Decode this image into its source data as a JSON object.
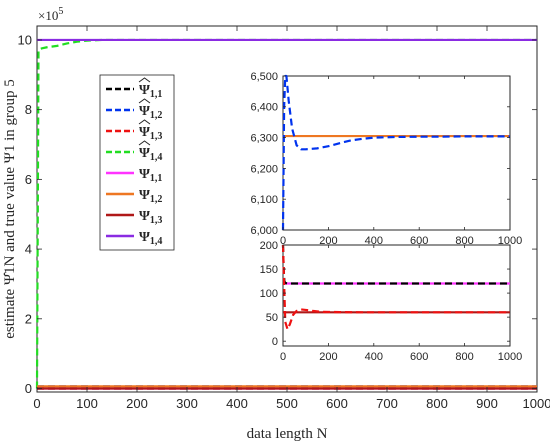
{
  "chart_data": [
    {
      "id": "main",
      "type": "line",
      "xlabel": "data length N",
      "ylabel": "estimate Ψ̂1N and true value Ψ1 in group 5",
      "exponent_label": "×10",
      "exponent_power": "5",
      "xlim": [
        0,
        1000
      ],
      "ylim": [
        -0.1,
        10.4
      ],
      "xticks": [
        0,
        100,
        200,
        300,
        400,
        500,
        600,
        700,
        800,
        900,
        1000
      ],
      "yticks": [
        0,
        2,
        4,
        6,
        8,
        10
      ],
      "tick_labels_x": [
        "0",
        "100",
        "200",
        "300",
        "400",
        "500",
        "600",
        "700",
        "800",
        "900",
        "1000"
      ],
      "tick_labels_y": [
        "0",
        "2",
        "4",
        "6",
        "8",
        "10"
      ],
      "grid": false,
      "legend_position": "top-left",
      "series": [
        {
          "name": "Ψ̂1,1",
          "sub": "1,1",
          "hat": true,
          "color": "#000000",
          "dashed": true,
          "x": [
            0,
            1000
          ],
          "y": [
            0.0012,
            0.0012
          ]
        },
        {
          "name": "Ψ̂1,2",
          "sub": "1,2",
          "hat": true,
          "color": "#0033ee",
          "dashed": true,
          "x": [
            0,
            1000
          ],
          "y": [
            0.063,
            0.063
          ]
        },
        {
          "name": "Ψ̂1,3",
          "sub": "1,3",
          "hat": true,
          "color": "#ee1111",
          "dashed": true,
          "x": [
            0,
            1000
          ],
          "y": [
            0.0006,
            0.0006
          ]
        },
        {
          "name": "Ψ̂1,4",
          "sub": "1,4",
          "hat": true,
          "color": "#22dd22",
          "dashed": true,
          "x": [
            0,
            3,
            6,
            10,
            20,
            40,
            60,
            80,
            100,
            130,
            1000
          ],
          "y": [
            0,
            9.7,
            9.74,
            9.76,
            9.79,
            9.83,
            9.9,
            9.95,
            9.98,
            10.0,
            10.0
          ]
        },
        {
          "name": "Ψ1,1",
          "sub": "1,1",
          "hat": false,
          "color": "#ff33ff",
          "dashed": false,
          "x": [
            0,
            1000
          ],
          "y": [
            0.0012,
            0.0012
          ]
        },
        {
          "name": "Ψ1,2",
          "sub": "1,2",
          "hat": false,
          "color": "#ee7722",
          "dashed": false,
          "x": [
            0,
            1000
          ],
          "y": [
            0.063,
            0.063
          ]
        },
        {
          "name": "Ψ1,3",
          "sub": "1,3",
          "hat": false,
          "color": "#b01818",
          "dashed": false,
          "x": [
            0,
            1000
          ],
          "y": [
            0.0006,
            0.0006
          ]
        },
        {
          "name": "Ψ1,4",
          "sub": "1,4",
          "hat": false,
          "color": "#8a2be2",
          "dashed": false,
          "x": [
            0,
            1000
          ],
          "y": [
            10.0,
            10.0
          ]
        }
      ]
    },
    {
      "id": "inset_top",
      "type": "line",
      "xlim": [
        0,
        1000
      ],
      "ylim": [
        6000,
        6500
      ],
      "xticks": [
        0,
        200,
        400,
        600,
        800,
        1000
      ],
      "yticks": [
        6000,
        6100,
        6200,
        6300,
        6400,
        6500
      ],
      "tick_labels_x": [
        "0",
        "200",
        "400",
        "600",
        "800",
        "1000"
      ],
      "tick_labels_y": [
        "6,000",
        "6,100",
        "6,200",
        "6,300",
        "6,400",
        "6,500"
      ],
      "series": [
        {
          "name": "Ψ1,2",
          "color": "#ee7722",
          "dashed": false,
          "x": [
            0,
            1000
          ],
          "y": [
            6305,
            6305
          ]
        },
        {
          "name": "Ψ̂1,2",
          "color": "#0033ee",
          "dashed": true,
          "x": [
            0,
            5,
            10,
            15,
            25,
            40,
            60,
            80,
            100,
            150,
            200,
            250,
            300,
            350,
            400,
            500,
            600,
            700,
            800,
            900,
            1000
          ],
          "y": [
            6000,
            6400,
            6500,
            6500,
            6420,
            6330,
            6275,
            6262,
            6262,
            6265,
            6272,
            6282,
            6291,
            6296,
            6300,
            6302,
            6303,
            6303,
            6304,
            6304,
            6304
          ]
        }
      ]
    },
    {
      "id": "inset_bottom",
      "type": "line",
      "xlim": [
        0,
        1000
      ],
      "ylim": [
        -10,
        200
      ],
      "xticks": [
        0,
        200,
        400,
        600,
        800,
        1000
      ],
      "yticks": [
        0,
        50,
        100,
        150,
        200
      ],
      "tick_labels_x": [
        "0",
        "200",
        "400",
        "600",
        "800",
        "1000"
      ],
      "tick_labels_y": [
        "0",
        "50",
        "100",
        "150",
        "200"
      ],
      "series": [
        {
          "name": "Ψ1,1",
          "color": "#ff33ff",
          "dashed": false,
          "x": [
            0,
            1000
          ],
          "y": [
            120,
            120
          ]
        },
        {
          "name": "Ψ̂1,1",
          "color": "#000000",
          "dashed": true,
          "x": [
            0,
            3,
            6,
            10,
            20,
            1000
          ],
          "y": [
            200,
            150,
            125,
            121,
            120,
            120
          ]
        },
        {
          "name": "Ψ1,3",
          "color": "#b01818",
          "dashed": false,
          "x": [
            0,
            1000
          ],
          "y": [
            60,
            60
          ]
        },
        {
          "name": "Ψ̂1,3",
          "color": "#ee1111",
          "dashed": true,
          "x": [
            0,
            5,
            10,
            20,
            30,
            45,
            60,
            80,
            100,
            130,
            170,
            250,
            350,
            500,
            700,
            1000
          ],
          "y": [
            200,
            120,
            40,
            25,
            35,
            55,
            63,
            66,
            65,
            63,
            61,
            60.5,
            60,
            60,
            60,
            60
          ]
        }
      ]
    }
  ]
}
